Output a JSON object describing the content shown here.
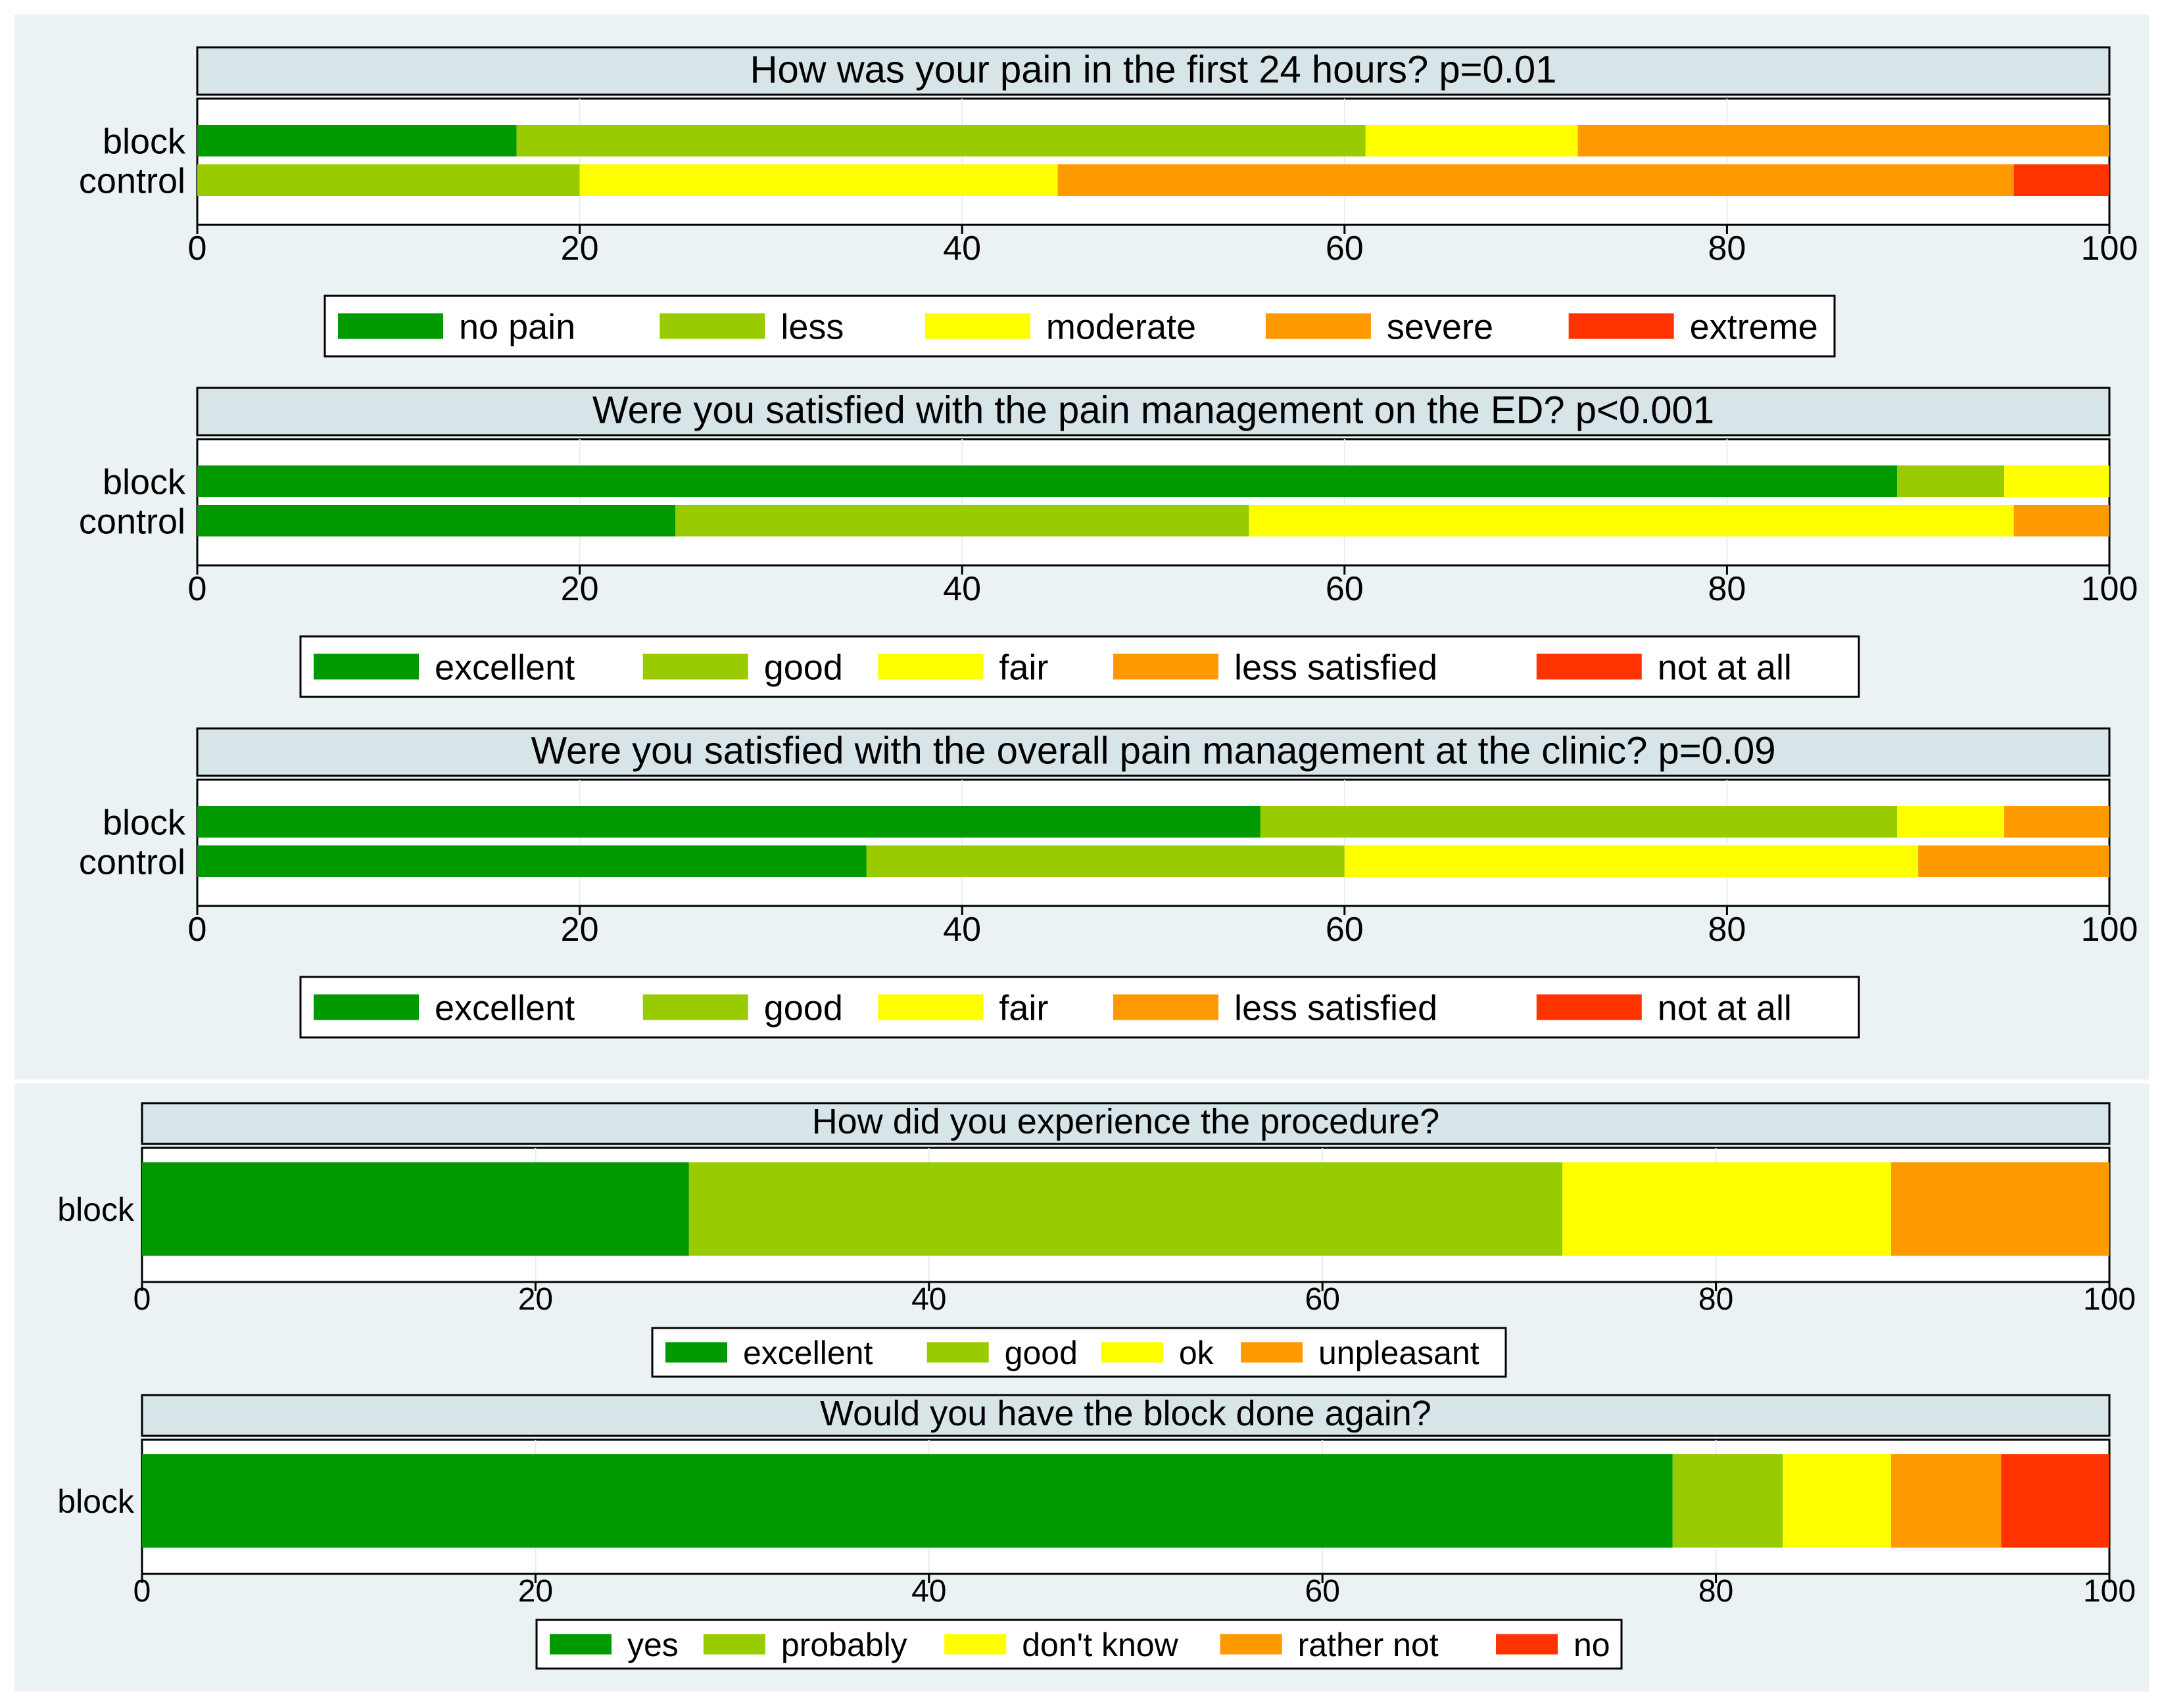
{
  "chart_data": [
    {
      "type": "bar",
      "orientation": "horizontal-stacked-percent",
      "title": "How was your pain in the first 24 hours? p=0.01",
      "categories": [
        "block",
        "control"
      ],
      "xlim": [
        0,
        100
      ],
      "xticks": [
        "0",
        "20",
        "40",
        "60",
        "80",
        "100"
      ],
      "series": [
        {
          "name": "no pain",
          "color": "#009900",
          "values": [
            16.7,
            0
          ]
        },
        {
          "name": "less",
          "color": "#99cc00",
          "values": [
            44.4,
            20
          ]
        },
        {
          "name": "moderate",
          "color": "#ffff00",
          "values": [
            11.1,
            25
          ]
        },
        {
          "name": "severe",
          "color": "#ff9900",
          "values": [
            27.8,
            50
          ]
        },
        {
          "name": "extreme",
          "color": "#ff3300",
          "values": [
            0,
            5
          ]
        }
      ],
      "legend": "bottom"
    },
    {
      "type": "bar",
      "orientation": "horizontal-stacked-percent",
      "title": "Were you satisfied with the pain management on the ED? p<0.001",
      "categories": [
        "block",
        "control"
      ],
      "xlim": [
        0,
        100
      ],
      "xticks": [
        "0",
        "20",
        "40",
        "60",
        "80",
        "100"
      ],
      "series": [
        {
          "name": "excellent",
          "color": "#009900",
          "values": [
            88.9,
            25
          ]
        },
        {
          "name": "good",
          "color": "#99cc00",
          "values": [
            5.6,
            30
          ]
        },
        {
          "name": "fair",
          "color": "#ffff00",
          "values": [
            5.5,
            40
          ]
        },
        {
          "name": "less satisfied",
          "color": "#ff9900",
          "values": [
            0,
            5
          ]
        },
        {
          "name": "not at all",
          "color": "#ff3300",
          "values": [
            0,
            0
          ]
        }
      ],
      "legend": "bottom"
    },
    {
      "type": "bar",
      "orientation": "horizontal-stacked-percent",
      "title": "Were you satisfied with the overall pain management at the clinic? p=0.09",
      "categories": [
        "block",
        "control"
      ],
      "xlim": [
        0,
        100
      ],
      "xticks": [
        "0",
        "20",
        "40",
        "60",
        "80",
        "100"
      ],
      "series": [
        {
          "name": "excellent",
          "color": "#009900",
          "values": [
            55.6,
            35
          ]
        },
        {
          "name": "good",
          "color": "#99cc00",
          "values": [
            33.3,
            25
          ]
        },
        {
          "name": "fair",
          "color": "#ffff00",
          "values": [
            5.6,
            30
          ]
        },
        {
          "name": "less satisfied",
          "color": "#ff9900",
          "values": [
            5.5,
            10
          ]
        },
        {
          "name": "not at all",
          "color": "#ff3300",
          "values": [
            0,
            0
          ]
        }
      ],
      "legend": "bottom"
    },
    {
      "type": "bar",
      "orientation": "horizontal-stacked-percent",
      "title": "How did you experience the procedure?",
      "categories": [
        "block"
      ],
      "xlim": [
        0,
        100
      ],
      "xticks": [
        "0",
        "20",
        "40",
        "60",
        "80",
        "100"
      ],
      "series": [
        {
          "name": "excellent",
          "color": "#009900",
          "values": [
            27.8
          ]
        },
        {
          "name": "good",
          "color": "#99cc00",
          "values": [
            44.4
          ]
        },
        {
          "name": "ok",
          "color": "#ffff00",
          "values": [
            16.7
          ]
        },
        {
          "name": "unpleasant",
          "color": "#ff9900",
          "values": [
            11.1
          ]
        }
      ],
      "legend": "bottom"
    },
    {
      "type": "bar",
      "orientation": "horizontal-stacked-percent",
      "title": "Would you have the block done again?",
      "categories": [
        "block"
      ],
      "xlim": [
        0,
        100
      ],
      "xticks": [
        "0",
        "20",
        "40",
        "60",
        "80",
        "100"
      ],
      "series": [
        {
          "name": "yes",
          "color": "#009900",
          "values": [
            77.8
          ]
        },
        {
          "name": "probably",
          "color": "#99cc00",
          "values": [
            5.6
          ]
        },
        {
          "name": "don't know",
          "color": "#ffff00",
          "values": [
            5.5
          ]
        },
        {
          "name": "rather not",
          "color": "#ff9900",
          "values": [
            5.6
          ]
        },
        {
          "name": "no",
          "color": "#ff3300",
          "values": [
            5.5
          ]
        }
      ],
      "legend": "bottom"
    }
  ]
}
